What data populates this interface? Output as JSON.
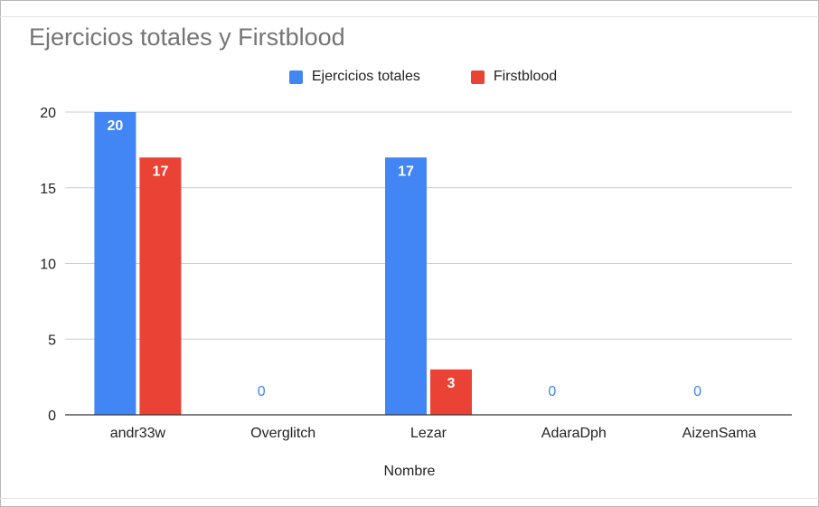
{
  "chart_data": {
    "type": "bar",
    "title": "Ejercicios totales y Firstblood",
    "xlabel": "Nombre",
    "ylabel": "",
    "ylim": [
      0,
      20
    ],
    "yticks": [
      0,
      5,
      10,
      15,
      20
    ],
    "categories": [
      "andr33w",
      "Overglitch",
      "Lezar",
      "AdaraDph",
      "AizenSama"
    ],
    "series": [
      {
        "name": "Ejercicios totales",
        "color": "#4285f4",
        "values": [
          20,
          0,
          17,
          0,
          0
        ]
      },
      {
        "name": "Firstblood",
        "color": "#ea4335",
        "values": [
          17,
          0,
          3,
          0,
          0
        ]
      }
    ],
    "legend_position": "top",
    "grid": true
  }
}
